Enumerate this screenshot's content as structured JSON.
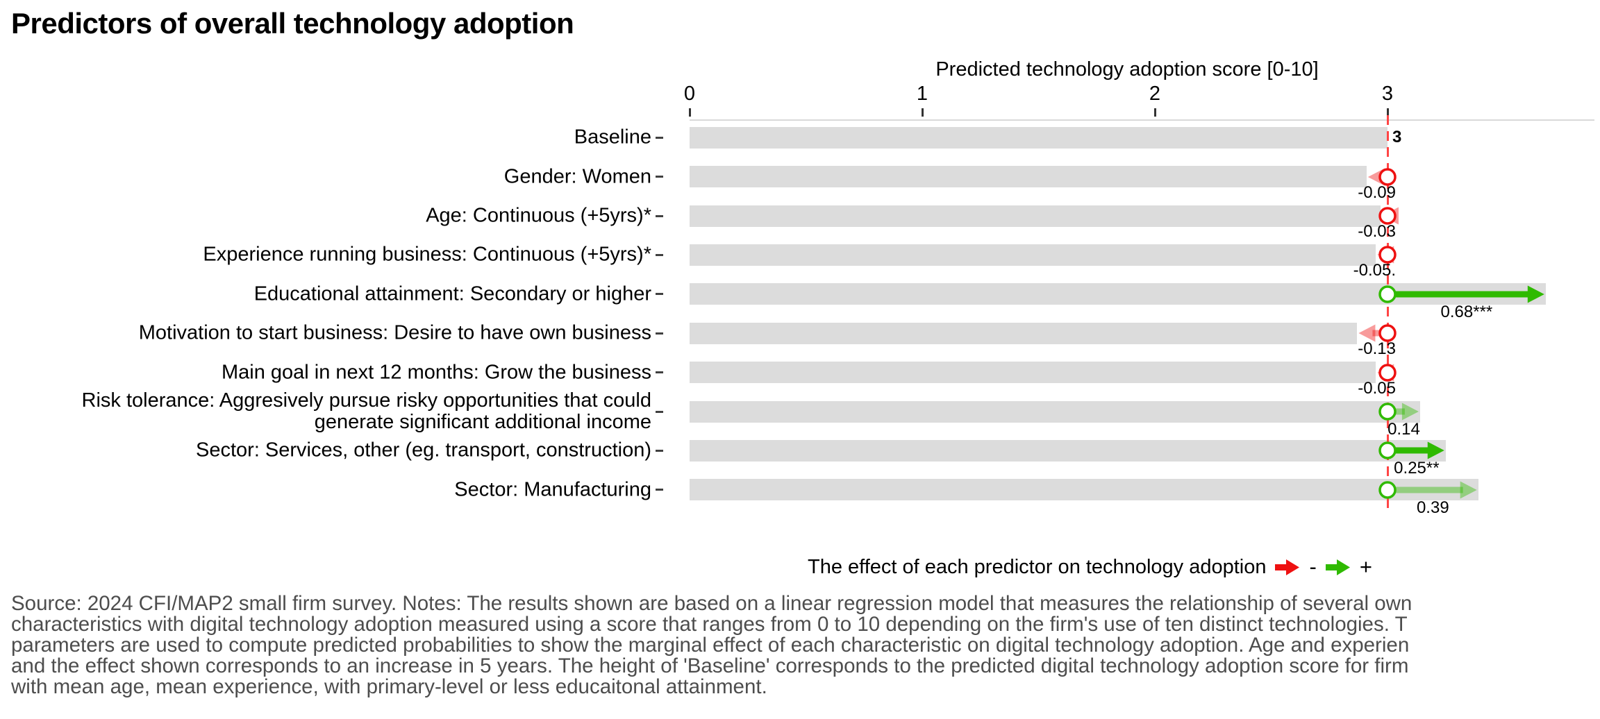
{
  "chart_data": {
    "type": "bar",
    "orientation": "horizontal",
    "title": "Predictors of overall technology adoption",
    "xlabel": "Predicted technology adoption score [0-10]",
    "xticks": [
      0,
      1,
      2,
      3
    ],
    "xlim": [
      0,
      3.9
    ],
    "baseline": 3,
    "grid": false,
    "legend_position": "bottom",
    "rows": [
      {
        "label": "Baseline",
        "value": 3.0,
        "effect": null,
        "value_label": "3",
        "significant": null
      },
      {
        "label": "Gender: Women",
        "value": 2.91,
        "effect": -0.09,
        "value_label": "-0.09",
        "significant": false
      },
      {
        "label": "Age: Continuous (+5yrs)*",
        "value": 2.97,
        "effect": -0.03,
        "value_label": "-0.03",
        "significant": false
      },
      {
        "label": "Experience running business: Continuous (+5yrs)*",
        "value": 2.95,
        "effect": -0.05,
        "value_label": "-0.05.",
        "significant": false
      },
      {
        "label": "Educational attainment: Secondary or higher",
        "value": 3.68,
        "effect": 0.68,
        "value_label": "0.68***",
        "significant": true
      },
      {
        "label": "Motivation to start business: Desire to have own business",
        "value": 2.87,
        "effect": -0.13,
        "value_label": "-0.13",
        "significant": false
      },
      {
        "label": "Main goal in next 12 months: Grow the business",
        "value": 2.95,
        "effect": -0.05,
        "value_label": "-0.05",
        "significant": false
      },
      {
        "label": "Risk tolerance: Aggresively pursue risky opportunities that could\ngenerate significant additional income",
        "value": 3.14,
        "effect": 0.14,
        "value_label": "0.14",
        "significant": false
      },
      {
        "label": "Sector: Services, other (eg. transport, construction)",
        "value": 3.25,
        "effect": 0.25,
        "value_label": "0.25**",
        "significant": true
      },
      {
        "label": "Sector: Manufacturing",
        "value": 3.39,
        "effect": 0.39,
        "value_label": "0.39",
        "significant": false
      }
    ]
  },
  "legend": {
    "text": "The effect of each predictor on technology adoption",
    "negative_symbol": "-",
    "positive_symbol": "+"
  },
  "footer": {
    "lines": [
      "Source: 2024 CFI/MAP2 small firm survey. Notes: The results shown are based on a linear regression model that measures the relationship of several own",
      "characteristics with digital technology adoption measured using a score that ranges from 0 to 10 depending on the firm's use of ten distinct technologies. T",
      "parameters are used to compute predicted probabilities to show the marginal effect of each characteristic on digital technology adoption. Age and experien",
      "and the effect shown corresponds to an increase in 5 years. The height of 'Baseline' corresponds to the predicted digital technology adoption score for firm",
      "with mean age, mean experience, with primary-level or less educaitonal attainment."
    ]
  },
  "colors": {
    "bar": "#dcdcdc",
    "baseline_line": "#ff4545",
    "negative": "#ee1111",
    "positive": "#2fba00",
    "axis_line": "#d9d9d9",
    "note_text": "#4d4d4d"
  }
}
